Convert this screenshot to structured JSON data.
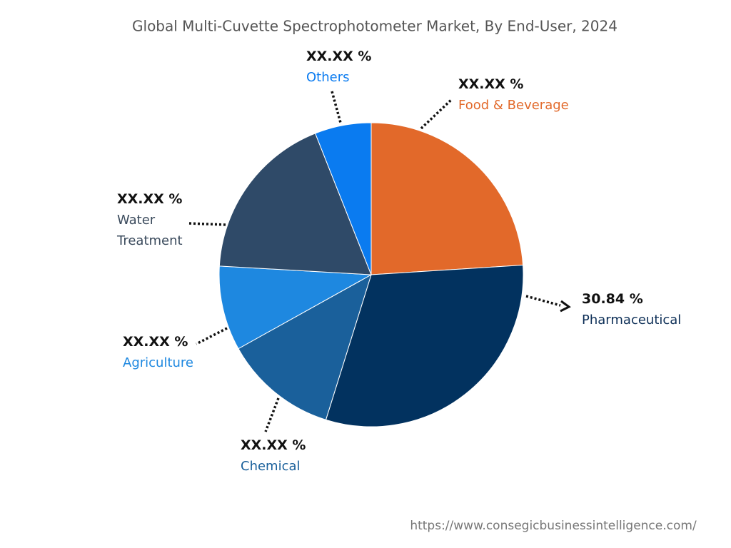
{
  "chart_data": {
    "type": "pie",
    "title": "Global Multi-Cuvette Spectrophotometer Market, By End-User, 2024",
    "categories": [
      "Food & Beverage",
      "Pharmaceutical",
      "Chemical",
      "Agriculture",
      "Water Treatment",
      "Others"
    ],
    "values": [
      24.0,
      30.84,
      12.1,
      9.0,
      18.1,
      6.0
    ],
    "value_labels": [
      "XX.XX %",
      "30.84 %",
      "XX.XX %",
      "XX.XX %",
      "XX.XX %",
      "XX.XX %"
    ],
    "colors": [
      "#e2692a",
      "#02325f",
      "#1a609b",
      "#1e88e0",
      "#2f4a68",
      "#0a7bf0"
    ],
    "source": "https://www.consegicbusinessintelligence.com/"
  }
}
